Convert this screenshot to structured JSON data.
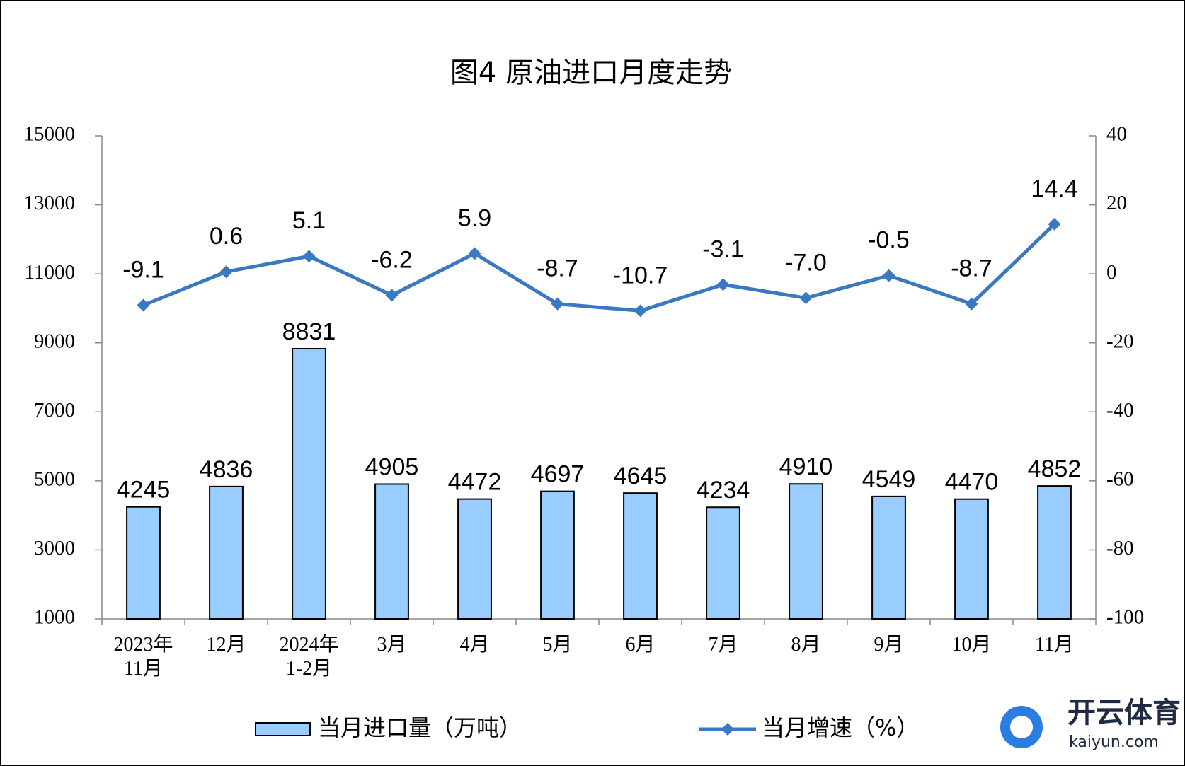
{
  "chart_data": {
    "type": "bar-line",
    "title": "图4  原油进口月度走势",
    "categories": [
      "2023年\n11月",
      "12月",
      "2024年\n1-2月",
      "3月",
      "4月",
      "5月",
      "6月",
      "7月",
      "8月",
      "9月",
      "10月",
      "11月"
    ],
    "series": [
      {
        "name": "当月进口量（万吨）",
        "type": "bar",
        "color": "#99ccff",
        "values": [
          4245,
          4836,
          8831,
          4905,
          4472,
          4697,
          4645,
          4234,
          4910,
          4549,
          4470,
          4852
        ]
      },
      {
        "name": "当月增速（%）",
        "type": "line",
        "axis": "y2",
        "color": "#3a78c2",
        "values": [
          -9.1,
          0.6,
          5.1,
          -6.2,
          5.9,
          -8.7,
          -10.7,
          -3.1,
          -7.0,
          -0.5,
          -8.7,
          14.4
        ],
        "value_labels": [
          "-9.1",
          "0.6",
          "5.1",
          "-6.2",
          "5.9",
          "-8.7",
          "-10.7",
          "-3.1",
          "-7.0",
          "-0.5",
          "-8.7",
          "14.4"
        ]
      }
    ],
    "ylim": [
      1000,
      15000
    ],
    "yticks": [
      1000,
      3000,
      5000,
      7000,
      9000,
      11000,
      13000,
      15000
    ],
    "y2lim": [
      -100,
      40
    ],
    "y2ticks": [
      -100,
      -80,
      -60,
      -40,
      -20,
      0,
      20,
      40
    ],
    "grid": false,
    "legend": "bottom"
  },
  "watermark": {
    "brand": "开云体育",
    "site": "kaiyun.com"
  }
}
